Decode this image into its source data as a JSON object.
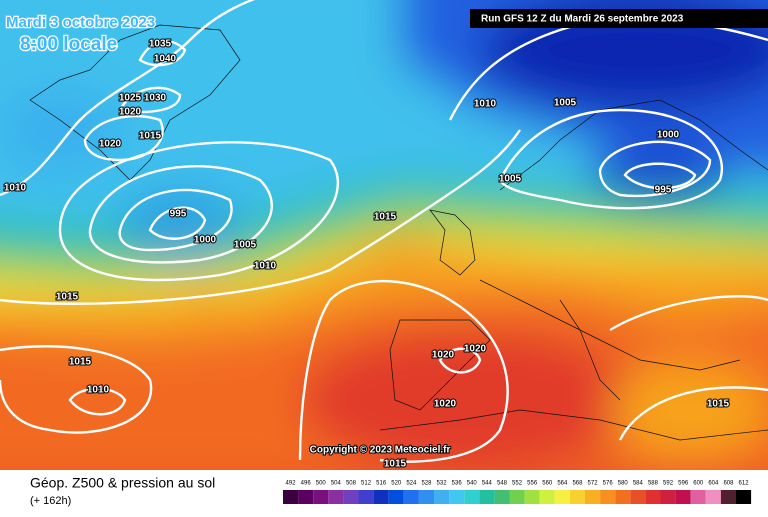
{
  "header": {
    "title": "Mardi 3 octobre 2023",
    "time": "8:00 locale",
    "run": "Run GFS 12 Z du Mardi 26 septembre 2023"
  },
  "isobar_labels": [
    1035,
    1040,
    1025,
    1030,
    1020,
    1015,
    1020,
    1010,
    995,
    1000,
    1005,
    1010,
    1015,
    1010,
    1005,
    1000,
    995,
    1005,
    1015,
    1015,
    1010,
    1020,
    1020,
    1020,
    1015,
    1015
  ],
  "copyright": "Copyright © 2023 Meteociel.fr",
  "legend": {
    "title": "Géop. Z500 & pression au sol",
    "lead_time": "(+ 162h)",
    "scale": [
      492,
      496,
      500,
      504,
      508,
      512,
      516,
      520,
      524,
      528,
      532,
      536,
      540,
      544,
      548,
      552,
      556,
      560,
      564,
      568,
      572,
      576,
      580,
      584,
      588,
      592,
      596,
      600,
      604,
      608,
      612
    ]
  }
}
